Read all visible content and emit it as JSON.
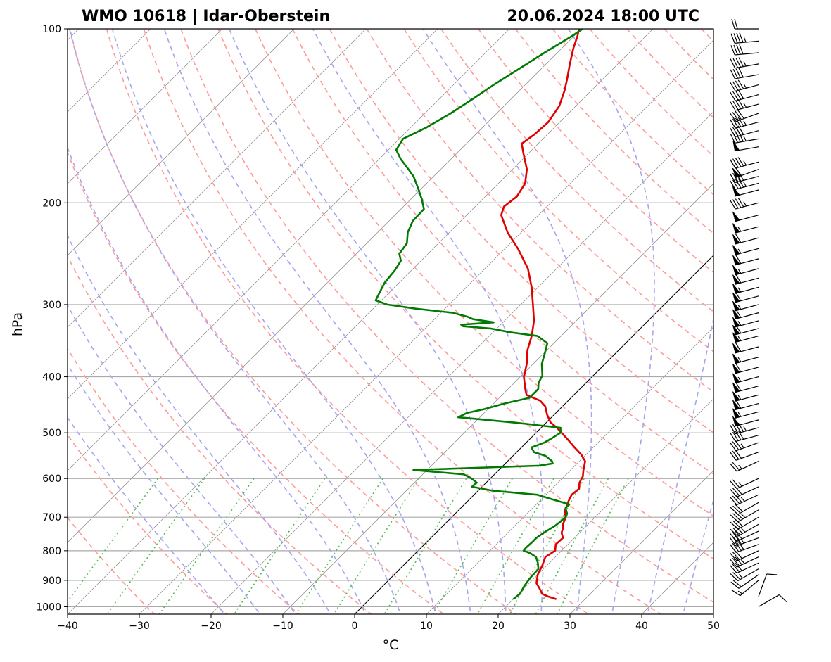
{
  "title_left": "WMO 10618 | Idar-Oberstein",
  "title_right": "20.06.2024 18:00 UTC",
  "colors": {
    "temperature": "#e00000",
    "dewpoint": "#007a00",
    "dry_adiabat": "#ff9a9a",
    "moist_adiabat": "#a5a5f0",
    "mixing_ratio": "#55bb55",
    "isotherm": "#888888",
    "isobar": "#aaaaaa",
    "zero_isotherm": "#000000"
  },
  "chart_data": {
    "type": "line",
    "diagram": "skew-T log-p",
    "xlabel": "°C",
    "ylabel": "hPa",
    "xlim": [
      -40,
      50
    ],
    "ylim": [
      1030,
      100
    ],
    "yscale": "log",
    "xticks": [
      "−40",
      "−30",
      "−20",
      "−10",
      "0",
      "10",
      "20",
      "30",
      "40",
      "50"
    ],
    "yticks": [
      "100",
      "200",
      "300",
      "400",
      "500",
      "600",
      "700",
      "800",
      "900",
      "1000"
    ],
    "grid": true,
    "series": [
      {
        "key": "temperature",
        "color": "#e00000",
        "points": [
          [
            970,
            26.0
          ],
          [
            960,
            24.5
          ],
          [
            950,
            23.3
          ],
          [
            930,
            22.2
          ],
          [
            910,
            21.0
          ],
          [
            880,
            20.0
          ],
          [
            850,
            19.4
          ],
          [
            820,
            18.6
          ],
          [
            800,
            19.1
          ],
          [
            780,
            18.3
          ],
          [
            760,
            18.4
          ],
          [
            745,
            17.5
          ],
          [
            730,
            17.0
          ],
          [
            720,
            16.5
          ],
          [
            700,
            15.9
          ],
          [
            690,
            15.3
          ],
          [
            680,
            14.8
          ],
          [
            670,
            14.5
          ],
          [
            655,
            14.0
          ],
          [
            640,
            13.6
          ],
          [
            625,
            13.8
          ],
          [
            610,
            13.0
          ],
          [
            595,
            12.6
          ],
          [
            580,
            11.8
          ],
          [
            560,
            10.8
          ],
          [
            545,
            9.3
          ],
          [
            530,
            7.4
          ],
          [
            510,
            4.9
          ],
          [
            490,
            2.2
          ],
          [
            480,
            0.6
          ],
          [
            465,
            -1.0
          ],
          [
            450,
            -2.4
          ],
          [
            440,
            -3.9
          ],
          [
            430,
            -6.6
          ],
          [
            420,
            -7.6
          ],
          [
            400,
            -9.5
          ],
          [
            380,
            -10.9
          ],
          [
            360,
            -12.7
          ],
          [
            340,
            -14.1
          ],
          [
            320,
            -15.9
          ],
          [
            300,
            -18.3
          ],
          [
            280,
            -20.9
          ],
          [
            260,
            -24.0
          ],
          [
            240,
            -28.2
          ],
          [
            225,
            -31.9
          ],
          [
            210,
            -35.2
          ],
          [
            203,
            -36.0
          ],
          [
            195,
            -35.6
          ],
          [
            185,
            -36.3
          ],
          [
            175,
            -38.0
          ],
          [
            165,
            -40.5
          ],
          [
            158,
            -42.3
          ],
          [
            152,
            -41.8
          ],
          [
            145,
            -41.6
          ],
          [
            136,
            -42.3
          ],
          [
            128,
            -43.7
          ],
          [
            122,
            -45.0
          ],
          [
            115,
            -46.7
          ],
          [
            108,
            -48.4
          ],
          [
            103,
            -49.5
          ],
          [
            100,
            -50.3
          ]
        ]
      },
      {
        "key": "dewpoint",
        "color": "#007a00",
        "points": [
          [
            970,
            20.0
          ],
          [
            950,
            20.2
          ],
          [
            920,
            19.7
          ],
          [
            890,
            19.4
          ],
          [
            860,
            19.3
          ],
          [
            840,
            18.4
          ],
          [
            820,
            17.3
          ],
          [
            808,
            16.0
          ],
          [
            800,
            14.7
          ],
          [
            790,
            14.6
          ],
          [
            775,
            14.7
          ],
          [
            760,
            14.7
          ],
          [
            745,
            15.0
          ],
          [
            725,
            15.6
          ],
          [
            710,
            15.8
          ],
          [
            700,
            15.9
          ],
          [
            690,
            15.6
          ],
          [
            675,
            14.6
          ],
          [
            665,
            14.6
          ],
          [
            650,
            11.1
          ],
          [
            640,
            8.8
          ],
          [
            630,
            2.1
          ],
          [
            620,
            -1.4
          ],
          [
            610,
            -1.3
          ],
          [
            600,
            -2.6
          ],
          [
            590,
            -4.3
          ],
          [
            580,
            -11.9
          ],
          [
            575,
            -3.5
          ],
          [
            570,
            5.0
          ],
          [
            565,
            6.6
          ],
          [
            560,
            6.2
          ],
          [
            548,
            4.5
          ],
          [
            540,
            2.4
          ],
          [
            530,
            1.4
          ],
          [
            520,
            2.5
          ],
          [
            510,
            3.0
          ],
          [
            500,
            3.4
          ],
          [
            490,
            2.7
          ],
          [
            480,
            -4.5
          ],
          [
            470,
            -13.0
          ],
          [
            462,
            -12.4
          ],
          [
            455,
            -10.5
          ],
          [
            445,
            -8.5
          ],
          [
            435,
            -5.8
          ],
          [
            420,
            -5.8
          ],
          [
            410,
            -6.6
          ],
          [
            398,
            -7.1
          ],
          [
            380,
            -8.8
          ],
          [
            365,
            -9.8
          ],
          [
            350,
            -10.9
          ],
          [
            340,
            -13.3
          ],
          [
            335,
            -17.6
          ],
          [
            330,
            -20.9
          ],
          [
            327,
            -25.0
          ],
          [
            325,
            -25.5
          ],
          [
            322,
            -21.3
          ],
          [
            318,
            -24.6
          ],
          [
            315,
            -25.7
          ],
          [
            310,
            -28.3
          ],
          [
            305,
            -34.0
          ],
          [
            300,
            -38.6
          ],
          [
            295,
            -40.8
          ],
          [
            285,
            -41.4
          ],
          [
            275,
            -42.0
          ],
          [
            262,
            -42.3
          ],
          [
            252,
            -42.8
          ],
          [
            245,
            -44.0
          ],
          [
            235,
            -44.4
          ],
          [
            225,
            -45.8
          ],
          [
            215,
            -46.7
          ],
          [
            205,
            -46.8
          ],
          [
            197,
            -48.5
          ],
          [
            188,
            -50.7
          ],
          [
            180,
            -52.8
          ],
          [
            175,
            -54.5
          ],
          [
            168,
            -57.0
          ],
          [
            162,
            -58.9
          ],
          [
            155,
            -59.5
          ],
          [
            148,
            -57.8
          ],
          [
            140,
            -56.4
          ],
          [
            132,
            -55.3
          ],
          [
            125,
            -54.4
          ],
          [
            118,
            -53.2
          ],
          [
            110,
            -51.8
          ],
          [
            103,
            -50.3
          ],
          [
            100,
            -49.8
          ]
        ]
      }
    ],
    "wind_barbs": [
      {
        "p": 100,
        "dir": 270,
        "spd": 20
      },
      {
        "p": 105,
        "dir": 265,
        "spd": 45
      },
      {
        "p": 110,
        "dir": 265,
        "spd": 40
      },
      {
        "p": 115,
        "dir": 260,
        "spd": 45
      },
      {
        "p": 120,
        "dir": 260,
        "spd": 40
      },
      {
        "p": 125,
        "dir": 255,
        "spd": 45
      },
      {
        "p": 130,
        "dir": 255,
        "spd": 40
      },
      {
        "p": 135,
        "dir": 255,
        "spd": 45
      },
      {
        "p": 140,
        "dir": 250,
        "spd": 40
      },
      {
        "p": 145,
        "dir": 255,
        "spd": 45
      },
      {
        "p": 150,
        "dir": 255,
        "spd": 40
      },
      {
        "p": 155,
        "dir": 260,
        "spd": 45
      },
      {
        "p": 160,
        "dir": 260,
        "spd": 50
      },
      {
        "p": 170,
        "dir": 255,
        "spd": 45
      },
      {
        "p": 175,
        "dir": 250,
        "spd": 60
      },
      {
        "p": 180,
        "dir": 255,
        "spd": 40
      },
      {
        "p": 185,
        "dir": 255,
        "spd": 45
      },
      {
        "p": 190,
        "dir": 255,
        "spd": 50
      },
      {
        "p": 200,
        "dir": 255,
        "spd": 45
      },
      {
        "p": 210,
        "dir": 255,
        "spd": 50
      },
      {
        "p": 220,
        "dir": 255,
        "spd": 55
      },
      {
        "p": 230,
        "dir": 255,
        "spd": 60
      },
      {
        "p": 240,
        "dir": 255,
        "spd": 55
      },
      {
        "p": 250,
        "dir": 255,
        "spd": 60
      },
      {
        "p": 260,
        "dir": 255,
        "spd": 55
      },
      {
        "p": 270,
        "dir": 255,
        "spd": 60
      },
      {
        "p": 280,
        "dir": 255,
        "spd": 55
      },
      {
        "p": 290,
        "dir": 255,
        "spd": 60
      },
      {
        "p": 300,
        "dir": 255,
        "spd": 55
      },
      {
        "p": 310,
        "dir": 255,
        "spd": 60
      },
      {
        "p": 320,
        "dir": 255,
        "spd": 55
      },
      {
        "p": 330,
        "dir": 255,
        "spd": 60
      },
      {
        "p": 340,
        "dir": 255,
        "spd": 55
      },
      {
        "p": 355,
        "dir": 255,
        "spd": 60
      },
      {
        "p": 370,
        "dir": 255,
        "spd": 55
      },
      {
        "p": 385,
        "dir": 255,
        "spd": 60
      },
      {
        "p": 400,
        "dir": 255,
        "spd": 55
      },
      {
        "p": 415,
        "dir": 255,
        "spd": 60
      },
      {
        "p": 430,
        "dir": 255,
        "spd": 55
      },
      {
        "p": 445,
        "dir": 255,
        "spd": 60
      },
      {
        "p": 460,
        "dir": 255,
        "spd": 55
      },
      {
        "p": 475,
        "dir": 255,
        "spd": 50
      },
      {
        "p": 490,
        "dir": 255,
        "spd": 45
      },
      {
        "p": 505,
        "dir": 255,
        "spd": 40
      },
      {
        "p": 520,
        "dir": 250,
        "spd": 35
      },
      {
        "p": 540,
        "dir": 250,
        "spd": 30
      },
      {
        "p": 560,
        "dir": 245,
        "spd": 25
      },
      {
        "p": 600,
        "dir": 245,
        "spd": 25
      },
      {
        "p": 620,
        "dir": 245,
        "spd": 30
      },
      {
        "p": 640,
        "dir": 245,
        "spd": 35
      },
      {
        "p": 660,
        "dir": 240,
        "spd": 30
      },
      {
        "p": 680,
        "dir": 240,
        "spd": 35
      },
      {
        "p": 700,
        "dir": 240,
        "spd": 30
      },
      {
        "p": 720,
        "dir": 240,
        "spd": 35
      },
      {
        "p": 740,
        "dir": 245,
        "spd": 30
      },
      {
        "p": 760,
        "dir": 250,
        "spd": 35
      },
      {
        "p": 780,
        "dir": 250,
        "spd": 40
      },
      {
        "p": 800,
        "dir": 245,
        "spd": 30
      },
      {
        "p": 820,
        "dir": 245,
        "spd": 35
      },
      {
        "p": 840,
        "dir": 245,
        "spd": 30
      },
      {
        "p": 860,
        "dir": 240,
        "spd": 25
      },
      {
        "p": 880,
        "dir": 235,
        "spd": 20
      },
      {
        "p": 900,
        "dir": 230,
        "spd": 15
      },
      {
        "p": 960,
        "dir": 20,
        "spd": 10
      },
      {
        "p": 1000,
        "dir": 60,
        "spd": 10
      }
    ]
  }
}
